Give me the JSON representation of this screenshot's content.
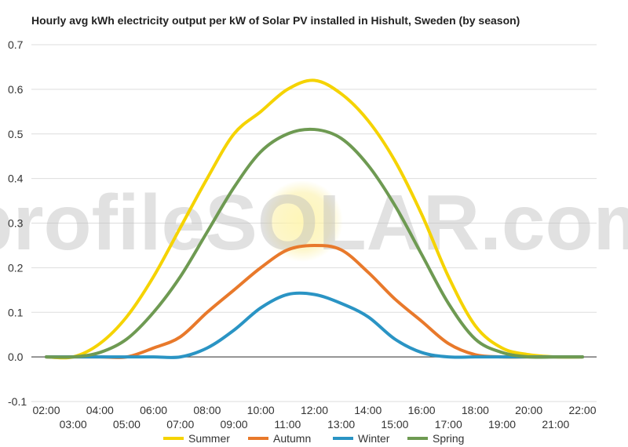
{
  "chart_data": {
    "type": "line",
    "title": "Hourly avg kWh electricity output per kW of Solar PV installed in Hishult, Sweden (by season)",
    "xlabel": "",
    "ylabel": "",
    "ylim": [
      -0.1,
      0.7
    ],
    "yticks": [
      "0.7",
      "0.6",
      "0.5",
      "0.4",
      "0.3",
      "0.2",
      "0.1",
      "0.0",
      "-0.1"
    ],
    "yticks_values": [
      0.7,
      0.6,
      0.5,
      0.4,
      0.3,
      0.2,
      0.1,
      0.0,
      -0.1
    ],
    "x": [
      "02:00",
      "03:00",
      "04:00",
      "05:00",
      "06:00",
      "07:00",
      "08:00",
      "09:00",
      "10:00",
      "11:00",
      "12:00",
      "13:00",
      "14:00",
      "15:00",
      "16:00",
      "17:00",
      "18:00",
      "19:00",
      "20:00",
      "21:00",
      "22:00"
    ],
    "grid": true,
    "legend_position": "bottom",
    "watermark": "profileSOLAR.com",
    "series": [
      {
        "name": "Summer",
        "color": "#f5d300",
        "values": [
          0.0,
          0.0,
          0.03,
          0.09,
          0.18,
          0.29,
          0.4,
          0.5,
          0.55,
          0.6,
          0.62,
          0.59,
          0.53,
          0.44,
          0.32,
          0.18,
          0.07,
          0.02,
          0.005,
          0.0,
          0.0
        ]
      },
      {
        "name": "Autumn",
        "color": "#e8792b",
        "values": [
          0.0,
          0.0,
          0.0,
          0.0,
          0.02,
          0.045,
          0.1,
          0.15,
          0.2,
          0.24,
          0.25,
          0.24,
          0.19,
          0.13,
          0.08,
          0.03,
          0.005,
          0.0,
          0.0,
          0.0,
          0.0
        ]
      },
      {
        "name": "Winter",
        "color": "#2a94c4",
        "values": [
          0.0,
          0.0,
          0.0,
          0.0,
          0.0,
          0.0,
          0.02,
          0.06,
          0.11,
          0.14,
          0.14,
          0.12,
          0.09,
          0.04,
          0.01,
          0.0,
          0.0,
          0.0,
          0.0,
          0.0,
          0.0
        ]
      },
      {
        "name": "Spring",
        "color": "#6e9a52",
        "values": [
          0.0,
          0.0,
          0.01,
          0.04,
          0.1,
          0.18,
          0.28,
          0.38,
          0.46,
          0.5,
          0.51,
          0.49,
          0.43,
          0.34,
          0.23,
          0.12,
          0.04,
          0.01,
          0.0,
          0.0,
          0.0
        ]
      }
    ]
  }
}
